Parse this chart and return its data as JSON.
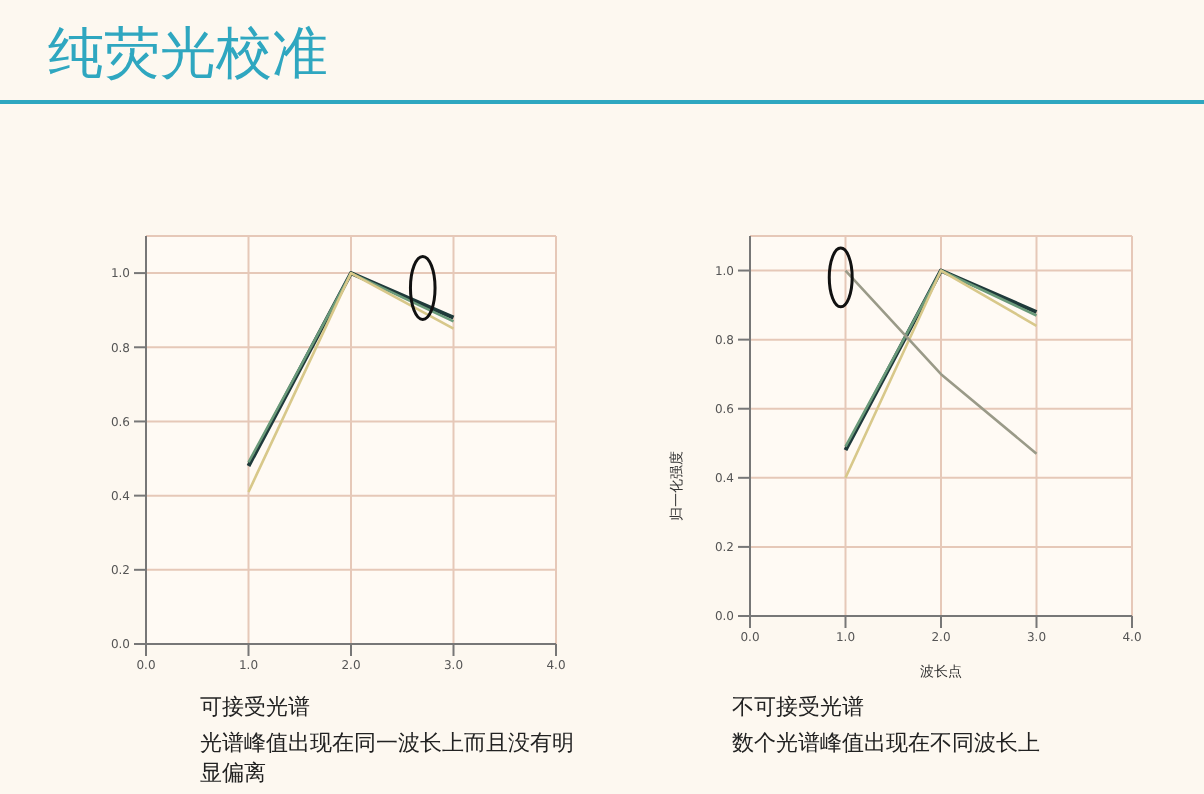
{
  "chart_data": [
    {
      "type": "line",
      "title": "纯荧光校准",
      "annotations": [
        "可接受光谱",
        "光谱峰值出现在同一波长上而且没有明显偏离"
      ],
      "x": [
        1,
        2,
        3
      ],
      "series": [
        {
          "color": "#1f3a3a",
          "values": [
            0.48,
            1.0,
            0.88
          ]
        },
        {
          "color": "#6a9a7a",
          "values": [
            0.49,
            1.0,
            0.87
          ]
        },
        {
          "color": "#d8c88a",
          "values": [
            0.41,
            1.0,
            0.85
          ]
        }
      ],
      "xlim": [
        0,
        4
      ],
      "xticks": [
        {
          "value": 0,
          "label": "0.0"
        },
        {
          "value": 1,
          "label": "1.0"
        },
        {
          "value": 2,
          "label": "2.0"
        },
        {
          "value": 3,
          "label": "3.0"
        },
        {
          "value": 4,
          "label": "4.0"
        }
      ],
      "ylim": [
        0,
        1.1
      ],
      "yticks": [
        {
          "value": 0,
          "label": "0.0"
        },
        {
          "value": 0.2,
          "label": "0.2"
        },
        {
          "value": 0.4,
          "label": "0.4"
        },
        {
          "value": 0.6,
          "label": "0.6"
        },
        {
          "value": 0.8,
          "label": "0.8"
        },
        {
          "value": 1,
          "label": "1.0"
        }
      ],
      "grid": true,
      "marker": "none",
      "line_style": "solid"
    },
    {
      "type": "line",
      "xlabel": "波长点",
      "ylabel": "归一化强度",
      "annotations": [
        "不可接受光谱",
        "数个光谱峰值出现在不同波长上"
      ],
      "x": [
        1,
        2,
        3
      ],
      "series": [
        {
          "color": "#1f3a3a",
          "values": [
            0.48,
            1.0,
            0.88
          ]
        },
        {
          "color": "#6a9a7a",
          "values": [
            0.49,
            1.0,
            0.87
          ]
        },
        {
          "color": "#d8c88a",
          "values": [
            0.4,
            1.0,
            0.84
          ]
        },
        {
          "color": "#9a9a88",
          "values": [
            1.0,
            0.7,
            0.47
          ]
        }
      ],
      "xlim": [
        0,
        4
      ],
      "xticks": [
        {
          "value": 0,
          "label": "0.0"
        },
        {
          "value": 1,
          "label": "1.0"
        },
        {
          "value": 2,
          "label": "2.0"
        },
        {
          "value": 3,
          "label": "3.0"
        },
        {
          "value": 4,
          "label": "4.0"
        }
      ],
      "ylim": [
        0,
        1.1
      ],
      "yticks": [
        {
          "value": 0,
          "label": "0.0"
        },
        {
          "value": 0.2,
          "label": "0.2"
        },
        {
          "value": 0.4,
          "label": "0.4"
        },
        {
          "value": 0.6,
          "label": "0.6"
        },
        {
          "value": 0.8,
          "label": "0.8"
        },
        {
          "value": 1,
          "label": "1.0"
        }
      ],
      "grid": true,
      "marker": "none",
      "line_style": "solid"
    }
  ]
}
